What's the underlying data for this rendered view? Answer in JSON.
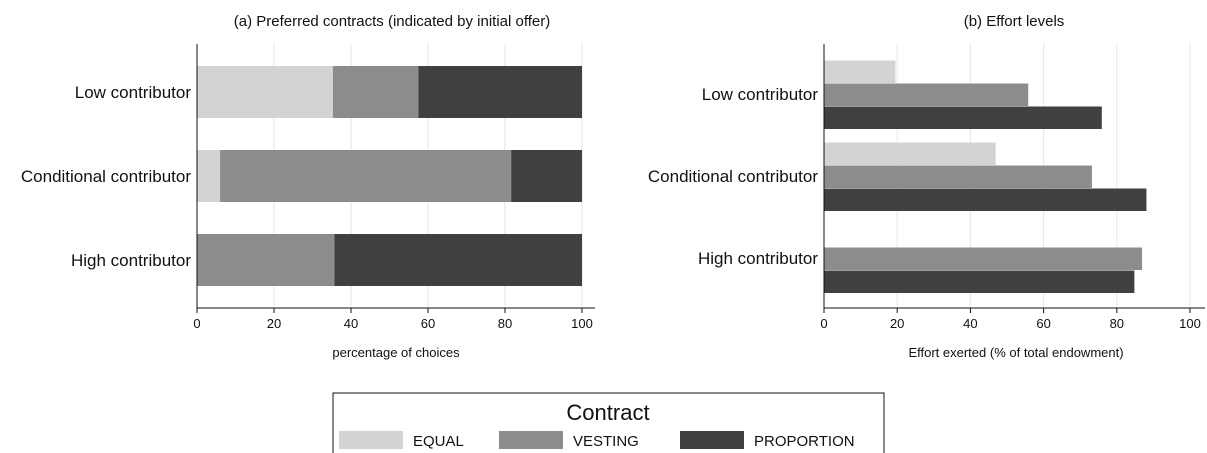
{
  "chart_data": [
    {
      "type": "bar",
      "orientation": "horizontal",
      "stacked": true,
      "title": "(a) Preferred contracts (indicated by initial offer)",
      "xlabel": "percentage of choices",
      "ylabel": "",
      "xlim": [
        0,
        100
      ],
      "xticks": [
        0,
        20,
        40,
        60,
        80,
        100
      ],
      "categories": [
        "Low contributor",
        "Conditional contributor",
        "High contributor"
      ],
      "series": [
        {
          "name": "EQUAL",
          "values": [
            35.3,
            6.0,
            0.0
          ]
        },
        {
          "name": "VESTING",
          "values": [
            22.2,
            75.6,
            35.7
          ]
        },
        {
          "name": "PROPORTION",
          "values": [
            42.5,
            18.4,
            64.3
          ]
        }
      ],
      "grid": "vertical"
    },
    {
      "type": "bar",
      "orientation": "horizontal",
      "stacked": false,
      "title": "(b) Effort levels",
      "xlabel": "Effort exerted (% of total endowment)",
      "ylabel": "",
      "xlim": [
        0,
        100
      ],
      "xticks": [
        0,
        20,
        40,
        60,
        80,
        100
      ],
      "categories": [
        "Low contributor",
        "Conditional contributor",
        "High contributor"
      ],
      "series": [
        {
          "name": "EQUAL",
          "values": [
            19.5,
            46.9,
            null
          ]
        },
        {
          "name": "VESTING",
          "values": [
            55.8,
            73.2,
            86.9
          ]
        },
        {
          "name": "PROPORTION",
          "values": [
            75.9,
            88.1,
            84.8
          ]
        }
      ],
      "grid": "vertical"
    }
  ],
  "legend": {
    "title": "Contract",
    "placement": "bottom-center",
    "items": [
      {
        "label": "EQUAL",
        "color": "#d3d3d3"
      },
      {
        "label": "VESTING",
        "color": "#8c8c8c"
      },
      {
        "label": "PROPORTION",
        "color": "#404040"
      }
    ]
  },
  "colors": {
    "EQUAL": "#d3d3d3",
    "VESTING": "#8c8c8c",
    "PROPORTION": "#404040",
    "axis": "#111111",
    "grid": "#e6e6e6"
  }
}
